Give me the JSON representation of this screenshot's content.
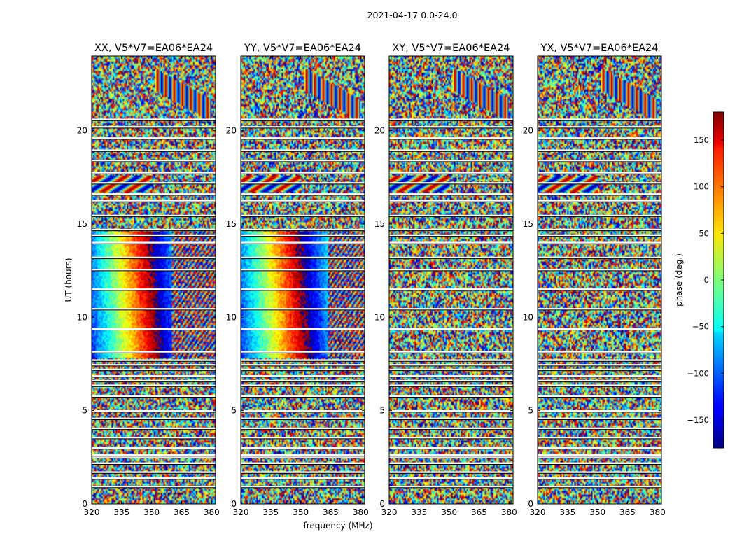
{
  "figure_title": "2021-04-17 0.0-24.0",
  "colorbar": {
    "label": "phase (deg.)",
    "min": -180,
    "max": 180,
    "ticks": [
      "150",
      "100",
      "50",
      "0",
      "−50",
      "−100",
      "−150"
    ]
  },
  "colors": {
    "frame": "#000000",
    "background": "#ffffff"
  },
  "chart_data": {
    "type": "heatmap",
    "quantity": "visibility phase (deg.)",
    "xlabel": "frequency (MHz)",
    "ylabel": "UT (hours)",
    "xlim": [
      320,
      382
    ],
    "ylim": [
      0,
      24
    ],
    "xticks": [
      320,
      335,
      350,
      365,
      380
    ],
    "yticks": [
      0,
      5,
      10,
      15,
      20
    ],
    "colormap": "jet",
    "color_range": [
      -180,
      180
    ],
    "panels": [
      {
        "title": "XX, V5*V7=EA06*EA24",
        "polarization": "XX"
      },
      {
        "title": "YY, V5*V7=EA06*EA24",
        "polarization": "YY"
      },
      {
        "title": "XY, V5*V7=EA06*EA24",
        "polarization": "XY"
      },
      {
        "title": "YX, V5*V7=EA06*EA24",
        "polarization": "YX"
      }
    ],
    "flagged_ut_hours": [
      0.93,
      1.38,
      1.7,
      2.18,
      2.52,
      2.62,
      3.0,
      3.55,
      4.05,
      4.58,
      4.98,
      5.78,
      6.35,
      6.6,
      6.85,
      7.2,
      7.45,
      7.7,
      8.15,
      9.38,
      10.45,
      11.5,
      12.55,
      13.2,
      14.0,
      14.4,
      14.7,
      15.45,
      16.25,
      16.6,
      17.2,
      17.75,
      18.4,
      18.95,
      19.6,
      20.2,
      20.6
    ]
  }
}
